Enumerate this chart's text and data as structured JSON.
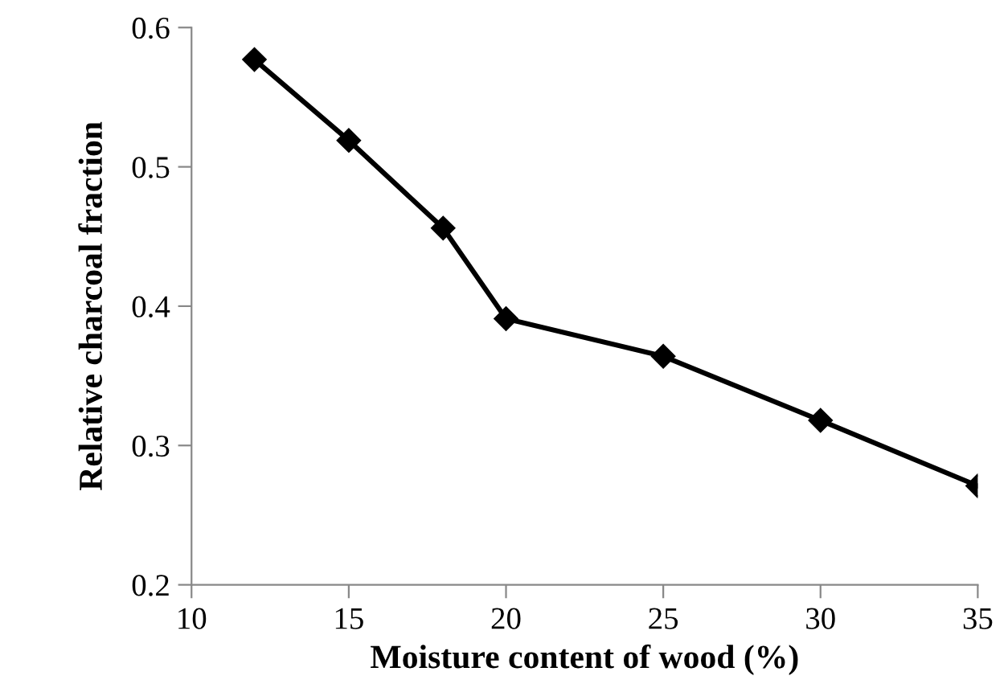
{
  "chart_data": {
    "type": "line",
    "xlabel": "Moisture content of wood (%)",
    "ylabel": "Relative charcoal fraction",
    "x": [
      12,
      15,
      18,
      20,
      25,
      30,
      35
    ],
    "series": [
      {
        "color": "#000000",
        "values": [
          0.577,
          0.519,
          0.456,
          0.391,
          0.364,
          0.318,
          0.271
        ]
      }
    ],
    "xlim": [
      10,
      35
    ],
    "xticks": [
      10,
      15,
      20,
      25,
      30,
      35
    ],
    "ylim": [
      0.2,
      0.6
    ],
    "yticks": [
      0.2,
      0.3,
      0.4,
      0.5,
      0.6
    ],
    "marker": "diamond",
    "line_style": "solid",
    "grid": false,
    "legend": false
  }
}
